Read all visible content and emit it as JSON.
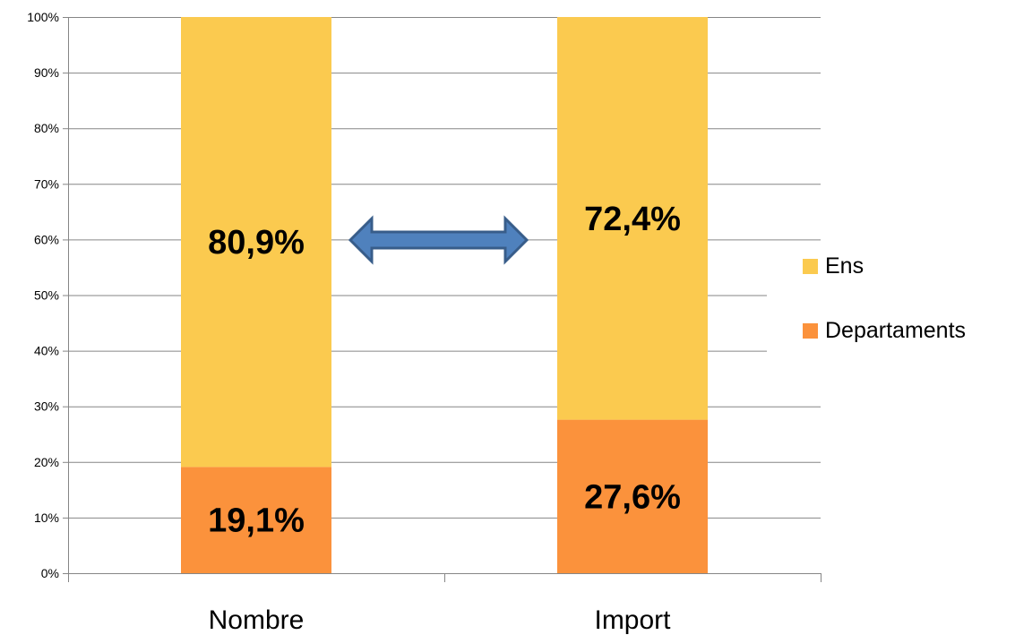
{
  "chart_data": {
    "type": "bar",
    "stacked": true,
    "percent_stacked": true,
    "categories": [
      "Nombre",
      "Import"
    ],
    "series": [
      {
        "name": "Departaments",
        "values": [
          19.1,
          27.6
        ],
        "labels": [
          "19,1%",
          "27,6%"
        ],
        "color": "#fb923c"
      },
      {
        "name": "Ens",
        "values": [
          80.9,
          72.4
        ],
        "labels": [
          "80,9%",
          "72,4%"
        ],
        "color": "#fbca4f"
      }
    ],
    "ylim": [
      0,
      100
    ],
    "yticks": [
      0,
      10,
      20,
      30,
      40,
      50,
      60,
      70,
      80,
      90,
      100
    ],
    "ytick_labels": [
      "0%",
      "10%",
      "20%",
      "30%",
      "40%",
      "50%",
      "60%",
      "70%",
      "80%",
      "90%",
      "100%"
    ],
    "title": "",
    "xlabel": "",
    "ylabel": "",
    "grid": true,
    "legend_position": "right",
    "legend_order": [
      "Ens",
      "Departaments"
    ],
    "annotation": {
      "type": "double-arrow",
      "between": [
        "Nombre",
        "Import"
      ],
      "color": "#4f81bd"
    },
    "colors": {
      "grid": "#868686",
      "axis": "#868686",
      "arrow_fill": "#4f81bd",
      "arrow_stroke": "#385d8a"
    }
  }
}
